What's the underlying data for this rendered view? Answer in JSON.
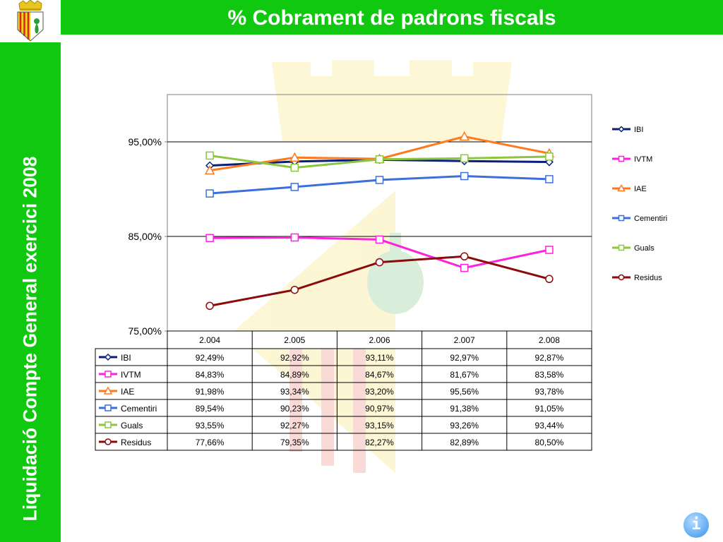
{
  "header": {
    "title": "% Cobrament de padrons fiscals"
  },
  "sidebar": {
    "text": "Liquidació Compte General exercici 2008"
  },
  "info_button": {
    "label": "i"
  },
  "chart_data": {
    "type": "line",
    "title": "",
    "xlabel": "",
    "ylabel": "",
    "categories": [
      "2.004",
      "2.005",
      "2.006",
      "2.007",
      "2.008"
    ],
    "y_ticks": [
      "95,00%",
      "85,00%",
      "75,00%"
    ],
    "ylim": [
      75,
      100
    ],
    "grid": true,
    "legend_position": "right",
    "series": [
      {
        "name": "IBI",
        "values": [
          92.49,
          92.92,
          93.11,
          92.97,
          92.87
        ],
        "labels": [
          "92,49%",
          "92,92%",
          "93,11%",
          "92,97%",
          "92,87%"
        ],
        "color": "#0b1f7a",
        "marker": "diamond"
      },
      {
        "name": "IVTM",
        "values": [
          84.83,
          84.89,
          84.67,
          81.67,
          83.58
        ],
        "labels": [
          "84,83%",
          "84,89%",
          "84,67%",
          "81,67%",
          "83,58%"
        ],
        "color": "#ff22dd",
        "marker": "square"
      },
      {
        "name": "IAE",
        "values": [
          91.98,
          93.34,
          93.2,
          95.56,
          93.78
        ],
        "labels": [
          "91,98%",
          "93,34%",
          "93,20%",
          "95,56%",
          "93,78%"
        ],
        "color": "#ff7a1f",
        "marker": "triangle"
      },
      {
        "name": "Cementiri",
        "values": [
          89.54,
          90.23,
          90.97,
          91.38,
          91.05
        ],
        "labels": [
          "89,54%",
          "90,23%",
          "90,97%",
          "91,38%",
          "91,05%"
        ],
        "color": "#3d6fdc",
        "marker": "square"
      },
      {
        "name": "Guals",
        "values": [
          93.55,
          92.27,
          93.15,
          93.26,
          93.44
        ],
        "labels": [
          "93,55%",
          "92,27%",
          "93,15%",
          "93,26%",
          "93,44%"
        ],
        "color": "#8cc63f",
        "marker": "square"
      },
      {
        "name": "Residus",
        "values": [
          77.66,
          79.35,
          82.27,
          82.89,
          80.5
        ],
        "labels": [
          "77,66%",
          "79,35%",
          "82,27%",
          "82,89%",
          "80,50%"
        ],
        "color": "#8b0a0a",
        "marker": "circle"
      }
    ]
  }
}
